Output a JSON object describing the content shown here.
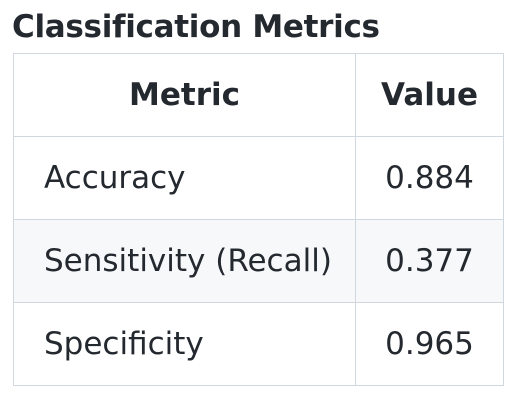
{
  "caption": "Classification Metrics",
  "table": {
    "headers": [
      "Metric",
      "Value"
    ],
    "rows": [
      {
        "metric": "Accuracy",
        "value": "0.884"
      },
      {
        "metric": "Sensitivity (Recall)",
        "value": "0.377"
      },
      {
        "metric": "Specificity",
        "value": "0.965"
      }
    ]
  },
  "colors": {
    "text": "#24292f",
    "border": "#d0d7de",
    "alt_row_background": "#f6f8fa"
  }
}
